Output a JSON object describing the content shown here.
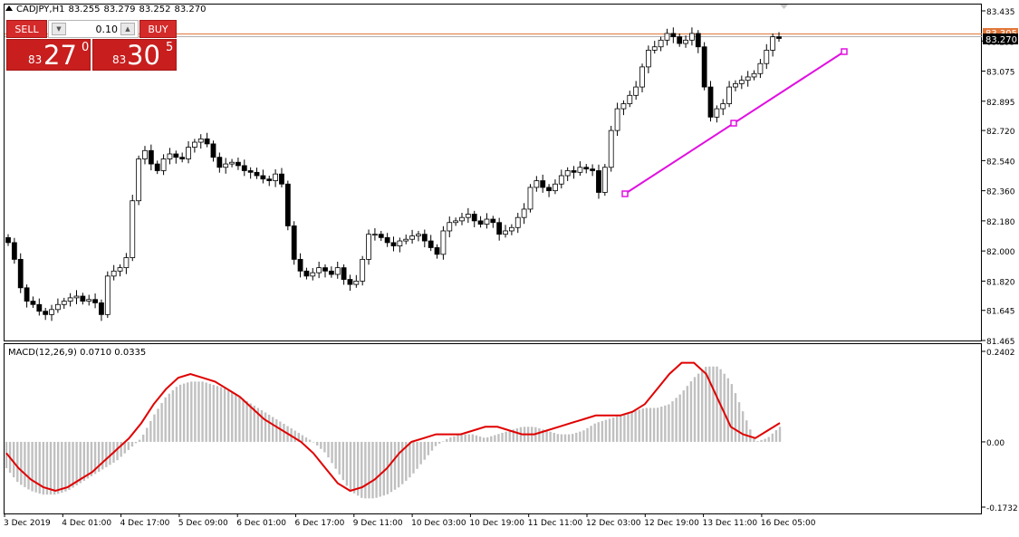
{
  "header": {
    "symbol": "CADJPY,H1",
    "open": "83.255",
    "high": "83.279",
    "low": "83.252",
    "close": "83.270"
  },
  "trade_panel": {
    "sell_label": "SELL",
    "buy_label": "BUY",
    "lot_value": "0.10",
    "bid": {
      "prefix": "83",
      "big": "27",
      "sup": "0"
    },
    "ask": {
      "prefix": "83",
      "big": "30",
      "sup": "5"
    }
  },
  "indicator": {
    "label": "MACD(12,26,9) 0.0710 0.0335"
  },
  "current_price_label": "83.270",
  "ask_line_label": "83.305",
  "colors": {
    "trade_red": "#d42a2a",
    "trendline": "#e010e0",
    "signal_line": "#e00000",
    "histogram": "#c0c0c0",
    "price_line": "#e0773a",
    "candle": "#000000"
  },
  "chart_data": [
    {
      "type": "candlestick",
      "title": "CADJPY,H1",
      "y_ticks": [
        "83.435",
        "83.255",
        "83.075",
        "82.895",
        "82.720",
        "82.540",
        "82.360",
        "82.180",
        "82.000",
        "81.820",
        "81.645",
        "81.465"
      ],
      "ylim": [
        81.465,
        83.435
      ],
      "x_ticks": [
        "3 Dec 2019",
        "4 Dec 01:00",
        "4 Dec 17:00",
        "5 Dec 09:00",
        "6 Dec 01:00",
        "6 Dec 17:00",
        "9 Dec 11:00",
        "10 Dec 03:00",
        "10 Dec 19:00",
        "11 Dec 11:00",
        "12 Dec 03:00",
        "12 Dec 19:00",
        "13 Dec 11:00",
        "16 Dec 05:00"
      ],
      "close": [
        82.05,
        81.95,
        81.78,
        81.7,
        81.68,
        81.64,
        81.62,
        81.65,
        81.68,
        81.7,
        81.72,
        81.73,
        81.7,
        81.71,
        81.69,
        81.62,
        81.85,
        81.88,
        81.9,
        81.96,
        82.3,
        82.55,
        82.6,
        82.52,
        82.48,
        82.55,
        82.58,
        82.56,
        82.55,
        82.62,
        82.65,
        82.67,
        82.64,
        82.56,
        82.5,
        82.52,
        82.53,
        82.51,
        82.48,
        82.47,
        82.45,
        82.43,
        82.42,
        82.46,
        82.4,
        82.15,
        81.95,
        81.88,
        81.85,
        81.87,
        81.9,
        81.88,
        81.86,
        81.9,
        81.83,
        81.8,
        81.82,
        81.95,
        82.1,
        82.1,
        82.08,
        82.05,
        82.03,
        82.06,
        82.07,
        82.09,
        82.1,
        82.06,
        82.02,
        81.98,
        82.12,
        82.17,
        82.18,
        82.2,
        82.22,
        82.18,
        82.16,
        82.19,
        82.17,
        82.1,
        82.12,
        82.14,
        82.2,
        82.25,
        82.38,
        82.42,
        82.38,
        82.36,
        82.4,
        82.45,
        82.48,
        82.47,
        82.5,
        82.49,
        82.48,
        82.35,
        82.5,
        82.72,
        82.85,
        82.88,
        82.93,
        82.98,
        83.1,
        83.2,
        83.22,
        83.26,
        83.3,
        83.28,
        83.24,
        83.26,
        83.3,
        83.22,
        82.98,
        82.8,
        82.85,
        82.88,
        82.98,
        83.0,
        83.02,
        83.04,
        83.06,
        83.12,
        83.2,
        83.28,
        83.27
      ],
      "macd_histogram_ylim": [
        -0.1732,
        0.2402
      ],
      "macd_y_ticks": [
        "0.2402",
        "0.00",
        "-0.1732"
      ],
      "macd_histogram": [
        -0.07,
        -0.11,
        -0.13,
        -0.14,
        -0.14,
        -0.13,
        -0.11,
        -0.09,
        -0.07,
        -0.05,
        -0.02,
        0.01,
        0.07,
        0.12,
        0.15,
        0.16,
        0.16,
        0.15,
        0.14,
        0.12,
        0.1,
        0.08,
        0.06,
        0.04,
        0.02,
        0.0,
        -0.03,
        -0.08,
        -0.13,
        -0.15,
        -0.15,
        -0.14,
        -0.12,
        -0.09,
        -0.05,
        -0.01,
        0.01,
        0.02,
        0.02,
        0.01,
        0.02,
        0.03,
        0.04,
        0.04,
        0.03,
        0.02,
        0.02,
        0.03,
        0.05,
        0.06,
        0.07,
        0.08,
        0.09,
        0.09,
        0.1,
        0.13,
        0.17,
        0.2,
        0.2,
        0.16,
        0.08,
        0.0,
        0.01,
        0.04
      ],
      "macd_signal": [
        -0.03,
        -0.07,
        -0.1,
        -0.12,
        -0.13,
        -0.12,
        -0.1,
        -0.08,
        -0.05,
        -0.02,
        0.01,
        0.05,
        0.1,
        0.14,
        0.17,
        0.18,
        0.17,
        0.16,
        0.14,
        0.12,
        0.09,
        0.06,
        0.04,
        0.02,
        0.0,
        -0.03,
        -0.07,
        -0.11,
        -0.13,
        -0.12,
        -0.1,
        -0.07,
        -0.03,
        0.0,
        0.01,
        0.02,
        0.02,
        0.02,
        0.03,
        0.04,
        0.04,
        0.03,
        0.02,
        0.02,
        0.03,
        0.04,
        0.05,
        0.06,
        0.07,
        0.07,
        0.07,
        0.08,
        0.1,
        0.14,
        0.18,
        0.21,
        0.21,
        0.18,
        0.11,
        0.04,
        0.02,
        0.01,
        0.03,
        0.05
      ]
    }
  ]
}
